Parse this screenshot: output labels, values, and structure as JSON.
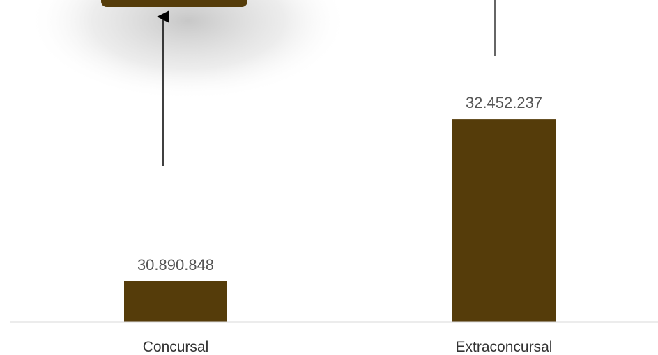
{
  "chart_data": {
    "type": "bar",
    "categories": [
      "Concursal",
      "Extraconcursal"
    ],
    "values": [
      30890848,
      32452237
    ],
    "value_labels": [
      "30.890.848",
      "32.452.237"
    ],
    "title": "",
    "xlabel": "",
    "ylabel": "",
    "ylim": [
      30500000,
      33500000
    ],
    "grid": false,
    "bar_color": "#553c0a",
    "axis_color": "#d9d9d9"
  }
}
